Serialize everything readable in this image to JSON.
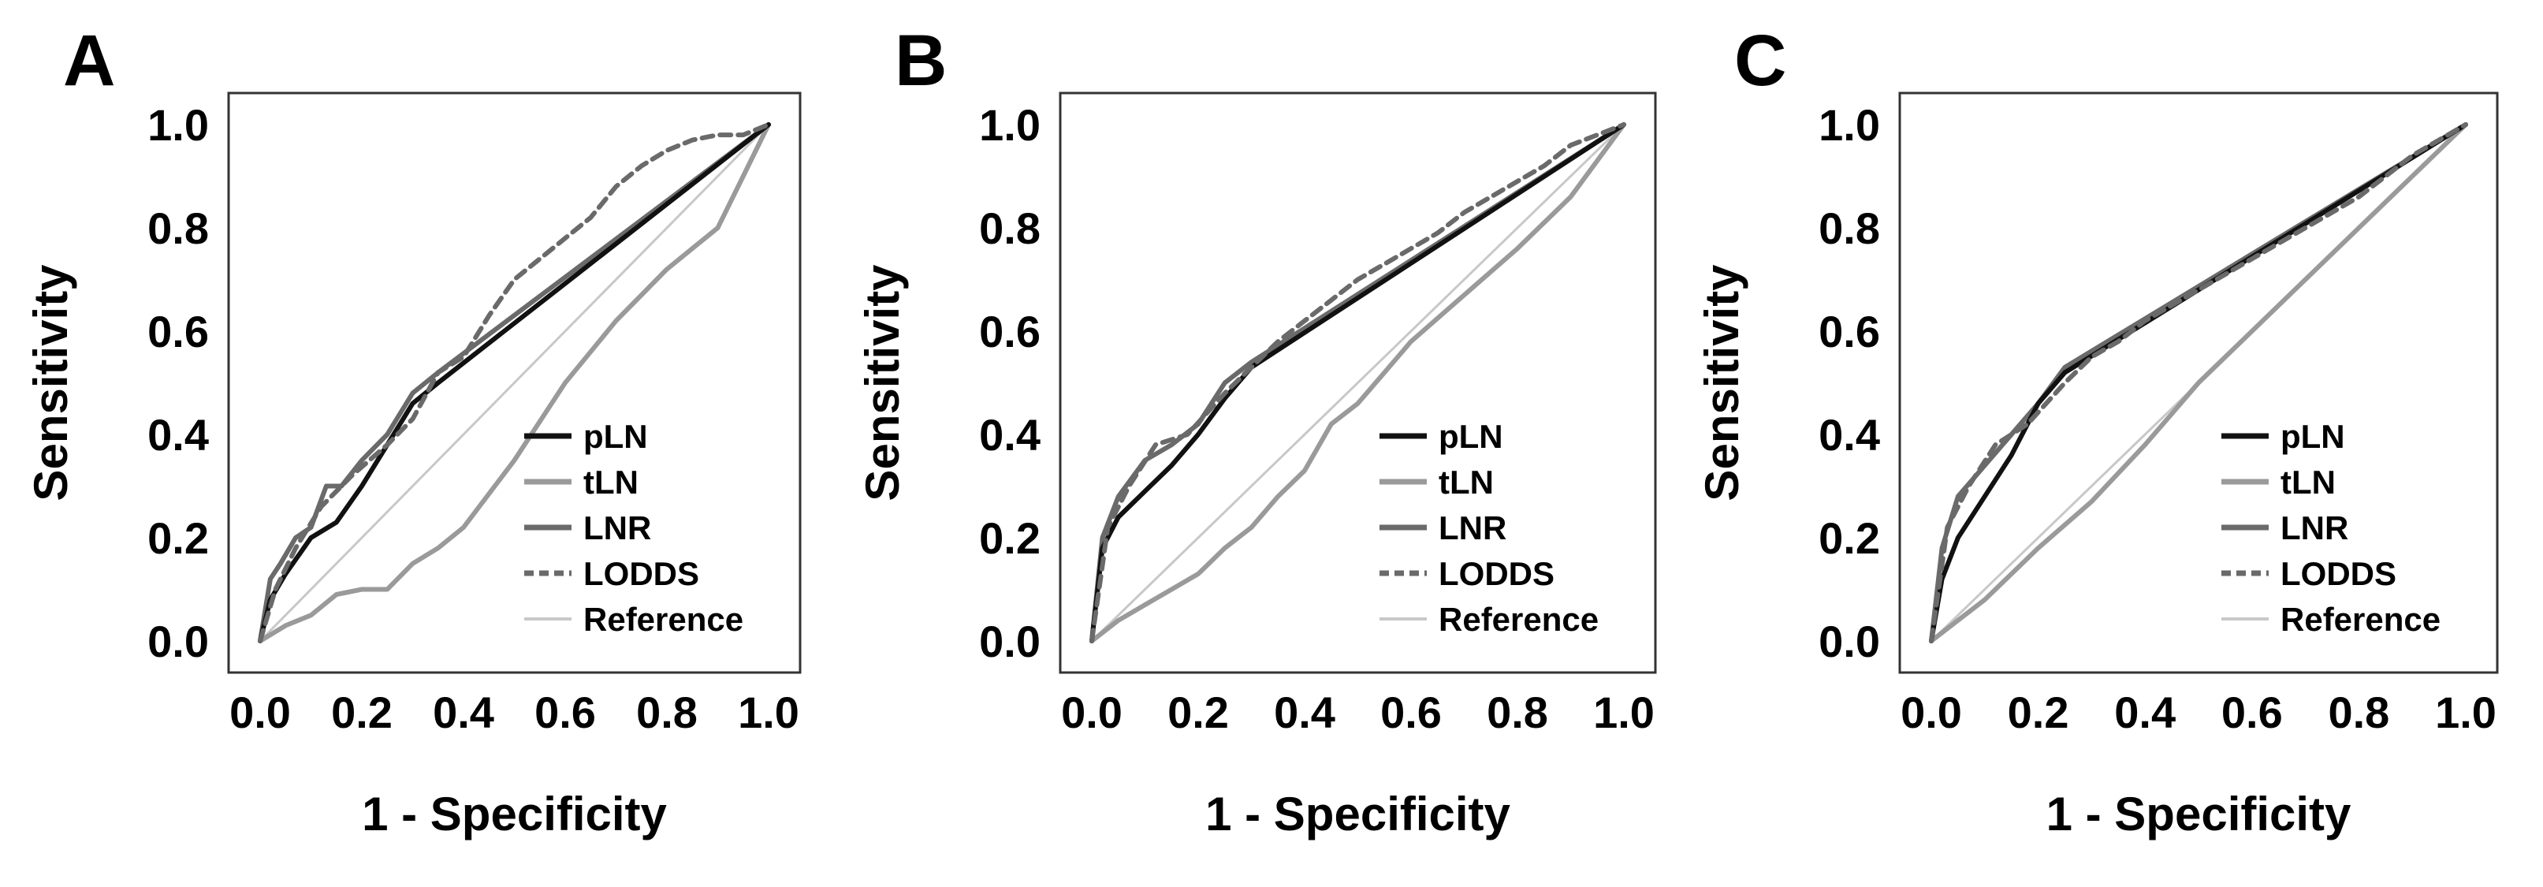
{
  "chart_data": [
    {
      "type": "line",
      "panel": "A",
      "xlabel": "1 - Specificity",
      "ylabel": "Sensitivity",
      "xlim": [
        0,
        1
      ],
      "ylim": [
        0,
        1
      ],
      "xticks": [
        "0.0",
        "0.2",
        "0.4",
        "0.6",
        "0.8",
        "1.0"
      ],
      "yticks": [
        "0.0",
        "0.2",
        "0.4",
        "0.6",
        "0.8",
        "1.0"
      ],
      "legend_position": "bottom-right",
      "series": [
        {
          "name": "pLN",
          "color": "#111111",
          "style": "solid",
          "x": [
            0,
            0.02,
            0.05,
            0.1,
            0.15,
            0.2,
            0.25,
            0.3,
            0.35,
            1.0
          ],
          "y": [
            0,
            0.08,
            0.13,
            0.2,
            0.23,
            0.3,
            0.38,
            0.46,
            0.5,
            1.0
          ]
        },
        {
          "name": "tLN",
          "color": "#9a9a9a",
          "style": "solid",
          "x": [
            0,
            0.05,
            0.1,
            0.15,
            0.2,
            0.25,
            0.3,
            0.35,
            0.4,
            0.5,
            0.6,
            0.7,
            0.8,
            0.9,
            0.95,
            1.0
          ],
          "y": [
            0,
            0.03,
            0.05,
            0.09,
            0.1,
            0.1,
            0.15,
            0.18,
            0.22,
            0.35,
            0.5,
            0.62,
            0.72,
            0.8,
            0.9,
            1.0
          ]
        },
        {
          "name": "LNR",
          "color": "#6a6a6a",
          "style": "solid",
          "x": [
            0,
            0.02,
            0.04,
            0.07,
            0.1,
            0.13,
            0.16,
            0.2,
            0.25,
            0.3,
            0.35,
            1.0
          ],
          "y": [
            0,
            0.12,
            0.15,
            0.2,
            0.22,
            0.3,
            0.3,
            0.35,
            0.4,
            0.48,
            0.52,
            1.0
          ]
        },
        {
          "name": "LODDS",
          "color": "#6a6a6a",
          "style": "dashed",
          "x": [
            0,
            0.03,
            0.07,
            0.12,
            0.18,
            0.25,
            0.3,
            0.35,
            0.4,
            0.45,
            0.5,
            0.55,
            0.6,
            0.65,
            0.7,
            0.75,
            0.8,
            0.85,
            0.9,
            0.95,
            1.0
          ],
          "y": [
            0,
            0.1,
            0.18,
            0.26,
            0.32,
            0.38,
            0.43,
            0.52,
            0.55,
            0.63,
            0.7,
            0.74,
            0.78,
            0.82,
            0.88,
            0.92,
            0.95,
            0.97,
            0.98,
            0.98,
            1.0
          ]
        },
        {
          "name": "Reference",
          "color": "#c8c8c8",
          "style": "solid",
          "x": [
            0,
            1
          ],
          "y": [
            0,
            1
          ]
        }
      ]
    },
    {
      "type": "line",
      "panel": "B",
      "xlabel": "1 - Specificity",
      "ylabel": "Sensitivity",
      "xlim": [
        0,
        1
      ],
      "ylim": [
        0,
        1
      ],
      "xticks": [
        "0.0",
        "0.2",
        "0.4",
        "0.6",
        "0.8",
        "1.0"
      ],
      "yticks": [
        "0.0",
        "0.2",
        "0.4",
        "0.6",
        "0.8",
        "1.0"
      ],
      "legend_position": "bottom-right",
      "series": [
        {
          "name": "pLN",
          "color": "#111111",
          "style": "solid",
          "x": [
            0,
            0.02,
            0.05,
            0.1,
            0.15,
            0.2,
            0.25,
            0.3,
            1.0
          ],
          "y": [
            0,
            0.18,
            0.24,
            0.29,
            0.34,
            0.4,
            0.47,
            0.53,
            1.0
          ]
        },
        {
          "name": "tLN",
          "color": "#9a9a9a",
          "style": "solid",
          "x": [
            0,
            0.05,
            0.1,
            0.15,
            0.2,
            0.25,
            0.3,
            0.35,
            0.4,
            0.45,
            0.5,
            0.55,
            0.6,
            0.7,
            0.8,
            0.9,
            1.0
          ],
          "y": [
            0,
            0.04,
            0.07,
            0.1,
            0.13,
            0.18,
            0.22,
            0.28,
            0.33,
            0.42,
            0.46,
            0.52,
            0.58,
            0.67,
            0.76,
            0.86,
            1.0
          ]
        },
        {
          "name": "LNR",
          "color": "#6a6a6a",
          "style": "solid",
          "x": [
            0,
            0.02,
            0.05,
            0.1,
            0.15,
            0.2,
            0.25,
            0.3,
            1.0
          ],
          "y": [
            0,
            0.2,
            0.28,
            0.35,
            0.38,
            0.42,
            0.5,
            0.54,
            1.0
          ]
        },
        {
          "name": "LODDS",
          "color": "#6a6a6a",
          "style": "dashed",
          "x": [
            0,
            0.03,
            0.07,
            0.12,
            0.18,
            0.25,
            0.3,
            0.35,
            0.4,
            0.45,
            0.5,
            0.55,
            0.6,
            0.65,
            0.7,
            0.75,
            0.8,
            0.85,
            0.9,
            0.95,
            1.0
          ],
          "y": [
            0,
            0.22,
            0.3,
            0.38,
            0.4,
            0.48,
            0.53,
            0.58,
            0.62,
            0.66,
            0.7,
            0.73,
            0.76,
            0.79,
            0.83,
            0.86,
            0.89,
            0.92,
            0.96,
            0.98,
            1.0
          ]
        },
        {
          "name": "Reference",
          "color": "#c8c8c8",
          "style": "solid",
          "x": [
            0,
            1
          ],
          "y": [
            0,
            1
          ]
        }
      ]
    },
    {
      "type": "line",
      "panel": "C",
      "xlabel": "1 - Specificity",
      "ylabel": "Sensitivity",
      "xlim": [
        0,
        1
      ],
      "ylim": [
        0,
        1
      ],
      "xticks": [
        "0.0",
        "0.2",
        "0.4",
        "0.6",
        "0.8",
        "1.0"
      ],
      "yticks": [
        "0.0",
        "0.2",
        "0.4",
        "0.6",
        "0.8",
        "1.0"
      ],
      "legend_position": "bottom-right",
      "series": [
        {
          "name": "pLN",
          "color": "#111111",
          "style": "solid",
          "x": [
            0,
            0.02,
            0.05,
            0.1,
            0.15,
            0.2,
            0.25,
            1.0
          ],
          "y": [
            0,
            0.12,
            0.2,
            0.28,
            0.36,
            0.46,
            0.52,
            1.0
          ]
        },
        {
          "name": "tLN",
          "color": "#9a9a9a",
          "style": "solid",
          "x": [
            0,
            0.05,
            0.1,
            0.15,
            0.2,
            0.3,
            0.4,
            0.5,
            0.6,
            0.7,
            0.8,
            0.9,
            1.0
          ],
          "y": [
            0,
            0.04,
            0.08,
            0.13,
            0.18,
            0.27,
            0.38,
            0.5,
            0.6,
            0.7,
            0.8,
            0.9,
            1.0
          ]
        },
        {
          "name": "LNR",
          "color": "#6a6a6a",
          "style": "solid",
          "x": [
            0,
            0.02,
            0.05,
            0.1,
            0.15,
            0.2,
            0.25,
            1.0
          ],
          "y": [
            0,
            0.18,
            0.28,
            0.34,
            0.4,
            0.46,
            0.53,
            1.0
          ]
        },
        {
          "name": "LODDS",
          "color": "#6a6a6a",
          "style": "dashed",
          "x": [
            0,
            0.03,
            0.07,
            0.12,
            0.18,
            0.25,
            0.3,
            0.35,
            0.4,
            0.45,
            0.5,
            0.55,
            0.6,
            0.65,
            0.7,
            0.75,
            0.8,
            0.85,
            0.9,
            0.95,
            1.0
          ],
          "y": [
            0,
            0.22,
            0.3,
            0.38,
            0.42,
            0.5,
            0.55,
            0.58,
            0.62,
            0.65,
            0.68,
            0.71,
            0.74,
            0.77,
            0.8,
            0.83,
            0.86,
            0.9,
            0.94,
            0.97,
            1.0
          ]
        },
        {
          "name": "Reference",
          "color": "#c8c8c8",
          "style": "solid",
          "x": [
            0,
            1
          ],
          "y": [
            0,
            1
          ]
        }
      ]
    }
  ]
}
